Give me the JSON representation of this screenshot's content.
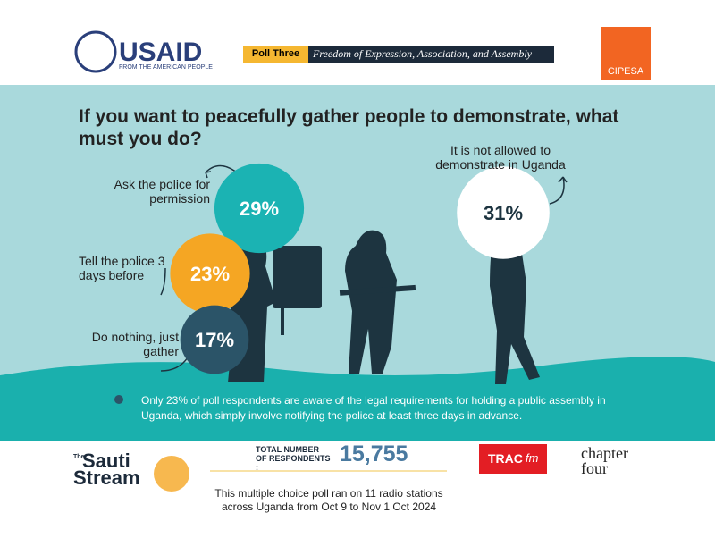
{
  "header": {
    "usaid": "USAID",
    "usaid_sub": "FROM THE AMERICAN PEOPLE",
    "poll_label": "Poll Three",
    "poll_topic": "Freedom of Expression, Association, and Assembly",
    "cipesa": "CIPESA"
  },
  "chart_data": {
    "type": "bubble",
    "title": "If you want to peacefully gather people to demonstrate, what must you do?",
    "categories": [
      "Ask the police for permission",
      "Tell the police 3 days before",
      "Do nothing, just gather",
      "It is not allowed to demonstrate in Uganda"
    ],
    "values": [
      29,
      23,
      17,
      31
    ],
    "value_labels": [
      "29%",
      "23%",
      "17%",
      "31%"
    ],
    "colors": [
      "#1bb3b3",
      "#f5a623",
      "#2b5468",
      "#ffffff"
    ]
  },
  "note": "Only 23% of poll respondents are aware of the legal requirements for holding a public assembly in Uganda, which simply involve notifying the police at least three days in advance.",
  "footer": {
    "sauti_the": "The",
    "sauti_name": "Sauti",
    "sauti_stream": "Stream",
    "respondents_label": "TOTAL NUMBER OF RESPONDENTS :",
    "respondents": "15,755",
    "method": "This multiple choice poll ran on 11 radio stations across Uganda from Oct 9 to Nov 1 Oct 2024",
    "trac": "TRAC",
    "trac_fm": "fm",
    "chapter": "chapter",
    "four": "four"
  }
}
